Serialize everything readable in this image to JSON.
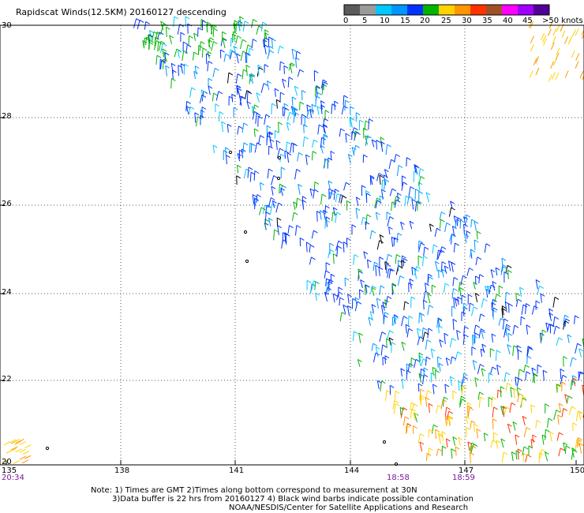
{
  "title": "Rapidscat Winds(12.5KM) 20160127 descending",
  "legend": {
    "labels": [
      "0",
      "5",
      "10",
      "15",
      "20",
      "25",
      "30",
      "35",
      "40",
      "45",
      ">50 knots"
    ],
    "colors": [
      "#5a5a5a",
      "#9a9a9a",
      "#00c8ff",
      "#0096ff",
      "#0032ff",
      "#00b400",
      "#ffd200",
      "#ff9600",
      "#ff3200",
      "#a05028",
      "#ff00ff",
      "#a000ff",
      "#500096"
    ]
  },
  "map": {
    "lat_ticks": [
      "30",
      "28",
      "26",
      "24",
      "22",
      "20"
    ],
    "lon_ticks": [
      "135",
      "138",
      "141",
      "144",
      "147",
      "150"
    ],
    "pass_times": [
      "20:34",
      "18:58",
      "18:59"
    ]
  },
  "notes": [
    "Note: 1) Times are GMT 2)Times along bottom correspond to measurement at 30N",
    "3)Data buffer is 22 hrs from 20160127 4) Black wind barbs indicate possible contamination",
    "NOAA/NESDIS/Center for Satellite Applications and Research"
  ]
}
